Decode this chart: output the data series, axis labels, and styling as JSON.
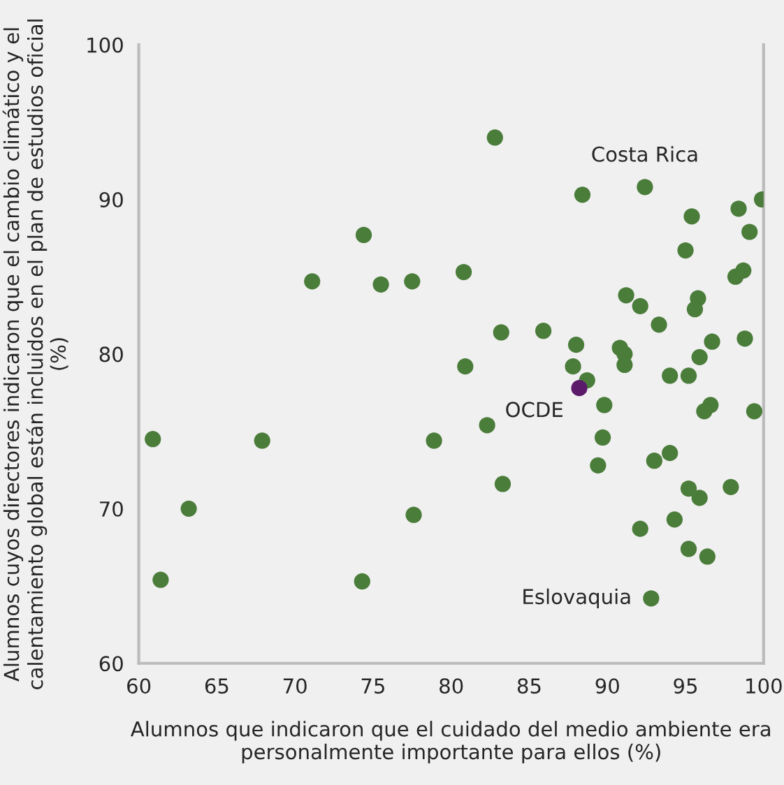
{
  "chart_data": {
    "type": "scatter",
    "xlabel": "Alumnos que indicaron que el cuidado del medio ambiente era personalmente importante para ellos (%)",
    "ylabel": "Alumnos cuyos directores indicaron que el cambio climático y el calentamiento global están incluidos en el plan de estudios oficial (%)",
    "xlim": [
      60,
      100
    ],
    "xticks": [
      60,
      65,
      70,
      75,
      80,
      85,
      90,
      95,
      100
    ],
    "ylim": [
      60,
      100
    ],
    "yticks": [
      60,
      70,
      80,
      90,
      100
    ],
    "grid": false,
    "legend": false,
    "marker": "circle",
    "series": [
      {
        "color": "#4a7c3a",
        "x": [
          60.9,
          61.4,
          63.2,
          67.9,
          71.1,
          74.4,
          75.5,
          77.5,
          78.9,
          77.6,
          74.3,
          80.8,
          83.2,
          85.9,
          80.9,
          82.3,
          83.3,
          82.8,
          88.4,
          92.4,
          88.0,
          87.8,
          88.7,
          89.8,
          89.7,
          89.4,
          91.2,
          92.1,
          93.3,
          90.8,
          91.1,
          91.1,
          94.0,
          95.2,
          93.0,
          94.0,
          95.2,
          95.9,
          94.3,
          92.1,
          95.2,
          96.4,
          92.8,
          95.0,
          95.4,
          98.4,
          99.9,
          99.1,
          98.2,
          98.7,
          95.8,
          95.6,
          96.7,
          98.8,
          95.9,
          96.6,
          96.2,
          99.4,
          97.9
        ],
        "values": [
          74.5,
          65.4,
          70.0,
          74.4,
          84.7,
          87.7,
          84.5,
          84.7,
          74.4,
          69.6,
          65.3,
          85.3,
          81.4,
          81.5,
          79.2,
          75.4,
          71.6,
          94.0,
          90.3,
          90.8,
          80.6,
          79.2,
          78.3,
          76.7,
          74.6,
          72.8,
          83.8,
          83.1,
          81.9,
          80.4,
          80.0,
          79.3,
          78.6,
          78.6,
          73.1,
          73.6,
          71.3,
          70.7,
          69.3,
          68.7,
          67.4,
          66.9,
          64.2,
          86.7,
          88.9,
          89.4,
          90.0,
          87.9,
          85.0,
          85.4,
          83.6,
          82.9,
          80.8,
          81.0,
          79.8,
          76.7,
          76.3,
          76.3,
          71.4
        ]
      },
      {
        "name": "OCDE",
        "color": "#5c1a6b",
        "x": [
          88.2
        ],
        "values": [
          77.8
        ]
      }
    ],
    "annotations": [
      {
        "text": "Costa Rica",
        "x": 92.4,
        "y": 90.8
      },
      {
        "text": "Eslovaquia",
        "x": 92.8,
        "y": 64.2
      }
    ]
  }
}
